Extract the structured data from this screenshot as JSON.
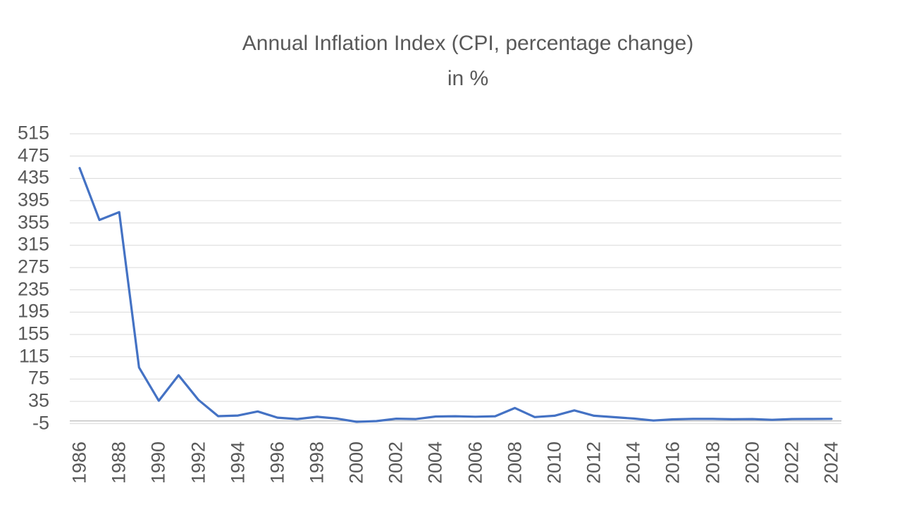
{
  "chart_data": {
    "type": "line",
    "title": "Annual Inflation Index (CPI, percentage change)",
    "subtitle": "in %",
    "x": [
      1986,
      1987,
      1988,
      1989,
      1990,
      1991,
      1992,
      1993,
      1994,
      1995,
      1996,
      1997,
      1998,
      1999,
      2000,
      2001,
      2002,
      2003,
      2004,
      2005,
      2006,
      2007,
      2008,
      2009,
      2010,
      2011,
      2012,
      2013,
      2014,
      2015,
      2016,
      2017,
      2018,
      2019,
      2020,
      2021,
      2022,
      2023,
      2024
    ],
    "series": [
      {
        "name": "Annual inflation (CPI, percentage change)",
        "color": "#4472C4",
        "values": [
          453.5,
          360.4,
          374.4,
          95.8,
          36.0,
          81.8,
          37.7,
          8.4,
          9.5,
          16.9,
          5.7,
          3.2,
          7.3,
          4.1,
          -1.7,
          -0.4,
          3.8,
          3.2,
          7.8,
          8.3,
          7.4,
          8.3,
          23.1,
          6.7,
          9.2,
          18.7,
          9.1,
          6.6,
          4.1,
          0.6,
          2.7,
          3.5,
          3.5,
          2.8,
          3.2,
          1.8,
          3.2,
          3.3,
          3.6
        ]
      }
    ],
    "ylim": [
      -5,
      515
    ],
    "y_ticks": [
      515,
      475,
      435,
      395,
      355,
      315,
      275,
      235,
      195,
      155,
      115,
      75,
      35,
      -5
    ],
    "x_tick_labels": [
      "1986",
      "1988",
      "1990",
      "1992",
      "1994",
      "1996",
      "1998",
      "2000",
      "2002",
      "2004",
      "2006",
      "2008",
      "2010",
      "2012",
      "2014",
      "2016",
      "2018",
      "2020",
      "2022",
      "2024"
    ],
    "grid": true,
    "legend": false,
    "xlabel": "",
    "ylabel": "",
    "gridline_color": "#D9D9D9",
    "axis_line_color": "#BFBFBF",
    "text_color": "#595959",
    "background_color": "#FFFFFF"
  }
}
